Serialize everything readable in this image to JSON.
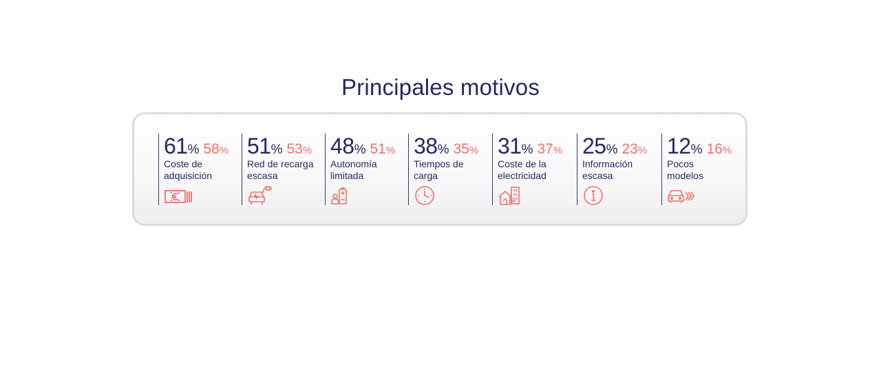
{
  "title": "Principales motivos",
  "colors": {
    "primary": "#232863",
    "accent": "#ef6f6c"
  },
  "items": [
    {
      "value_main": "61",
      "unit_main": "%",
      "value_alt": "58",
      "unit_alt": "%",
      "label": "Coste de adquisición",
      "icon": "money-bill-icon"
    },
    {
      "value_main": "51",
      "unit_main": "%",
      "value_alt": "53",
      "unit_alt": "%",
      "label": "Red de recarga escasa",
      "icon": "car-charging-icon"
    },
    {
      "value_main": "48",
      "unit_main": "%",
      "value_alt": "51",
      "unit_alt": "%",
      "label": "Autonomía limitada",
      "icon": "battery-person-icon"
    },
    {
      "value_main": "38",
      "unit_main": "%",
      "value_alt": "35",
      "unit_alt": "%",
      "label": "Tiempos de carga",
      "icon": "clock-icon"
    },
    {
      "value_main": "31",
      "unit_main": "%",
      "value_alt": "37",
      "unit_alt": "%",
      "label": "Coste de la electricidad",
      "icon": "house-plug-icon"
    },
    {
      "value_main": "25",
      "unit_main": "%",
      "value_alt": "23",
      "unit_alt": "%",
      "label": "Información escasa",
      "icon": "info-icon"
    },
    {
      "value_main": "12",
      "unit_main": "%",
      "value_alt": "16",
      "unit_alt": "%",
      "label": "Pocos modelos",
      "icon": "car-motion-icon"
    }
  ]
}
